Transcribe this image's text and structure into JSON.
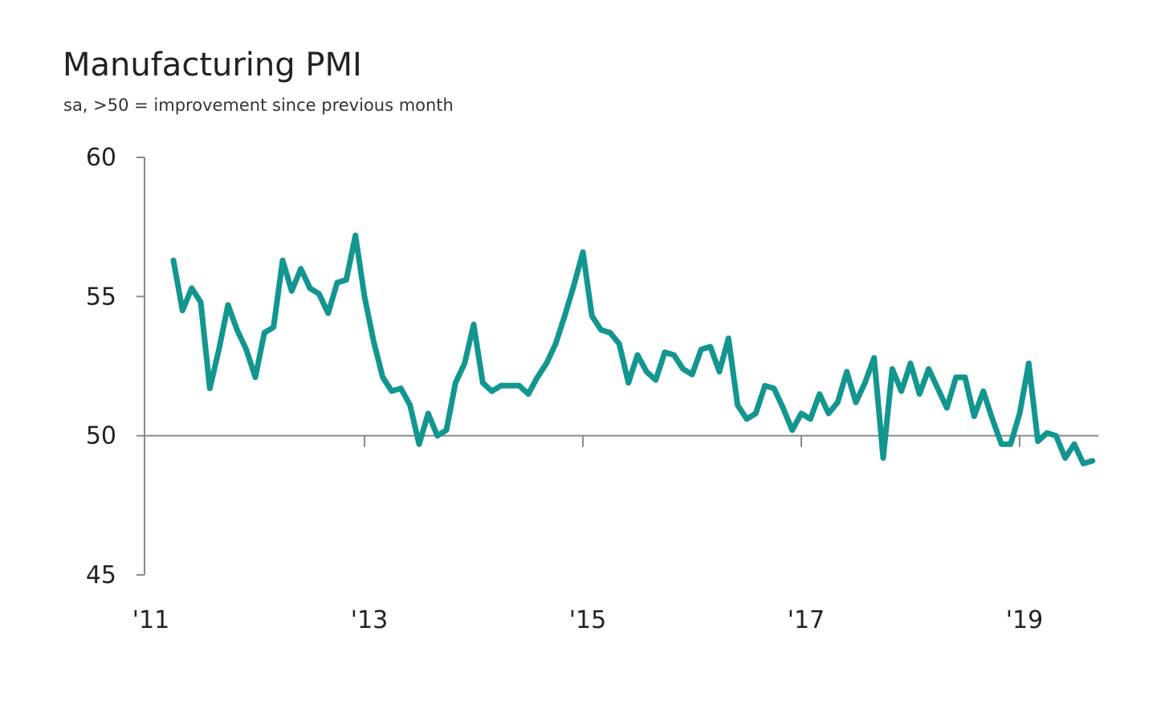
{
  "chart_data": {
    "type": "line",
    "title": "Manufacturing PMI",
    "subtitle": "sa, >50 = improvement since previous month",
    "xlabel": "",
    "ylabel": "",
    "ylim": [
      45,
      60
    ],
    "yticks": [
      60,
      55,
      50,
      45
    ],
    "xticks": [
      {
        "year": 2011,
        "label": "'11"
      },
      {
        "year": 2013,
        "label": "'13"
      },
      {
        "year": 2015,
        "label": "'15"
      },
      {
        "year": 2017,
        "label": "'17"
      },
      {
        "year": 2019,
        "label": "'19"
      }
    ],
    "reference_line": 50,
    "grid": false,
    "legend": "none",
    "line_color": "#12968f",
    "axis_color": "#8a8a8a",
    "series": [
      {
        "name": "",
        "x": [
          "2011-04",
          "2011-05",
          "2011-06",
          "2011-07",
          "2011-08",
          "2011-09",
          "2011-10",
          "2011-11",
          "2011-12",
          "2012-01",
          "2012-02",
          "2012-03",
          "2012-04",
          "2012-05",
          "2012-06",
          "2012-07",
          "2012-08",
          "2012-09",
          "2012-10",
          "2012-11",
          "2012-12",
          "2013-01",
          "2013-02",
          "2013-03",
          "2013-04",
          "2013-05",
          "2013-06",
          "2013-07",
          "2013-08",
          "2013-09",
          "2013-10",
          "2013-11",
          "2013-12",
          "2014-01",
          "2014-02",
          "2014-03",
          "2014-04",
          "2014-05",
          "2014-06",
          "2014-07",
          "2014-08",
          "2014-09",
          "2014-10",
          "2014-11",
          "2014-12",
          "2015-01",
          "2015-02",
          "2015-03",
          "2015-04",
          "2015-05",
          "2015-06",
          "2015-07",
          "2015-08",
          "2015-09",
          "2015-10",
          "2015-11",
          "2015-12",
          "2016-01",
          "2016-02",
          "2016-03",
          "2016-04",
          "2016-05",
          "2016-06",
          "2016-07",
          "2016-08",
          "2016-09",
          "2016-10",
          "2016-11",
          "2016-12",
          "2017-01",
          "2017-02",
          "2017-03",
          "2017-04",
          "2017-05",
          "2017-06",
          "2017-07",
          "2017-08",
          "2017-09",
          "2017-10",
          "2017-11",
          "2017-12",
          "2018-01",
          "2018-02",
          "2018-03",
          "2018-04",
          "2018-05",
          "2018-06",
          "2018-07",
          "2018-08",
          "2018-09",
          "2018-10",
          "2018-11",
          "2018-12",
          "2019-01",
          "2019-02",
          "2019-03",
          "2019-04",
          "2019-05",
          "2019-06",
          "2019-07",
          "2019-08",
          "2019-09"
        ],
        "values": [
          56.3,
          54.5,
          55.3,
          54.8,
          51.7,
          53.1,
          54.7,
          53.8,
          53.1,
          52.1,
          53.7,
          53.9,
          56.3,
          55.2,
          56.0,
          55.3,
          55.1,
          54.4,
          55.5,
          55.6,
          57.2,
          55.0,
          53.4,
          52.1,
          51.6,
          51.7,
          51.1,
          49.7,
          50.8,
          50.0,
          50.2,
          51.9,
          52.6,
          54.0,
          51.9,
          51.6,
          51.8,
          51.8,
          51.8,
          51.5,
          52.1,
          52.6,
          53.3,
          54.3,
          55.4,
          56.6,
          54.3,
          53.8,
          53.7,
          53.3,
          51.9,
          52.9,
          52.3,
          52.0,
          53.0,
          52.9,
          52.4,
          52.2,
          53.1,
          53.2,
          52.3,
          53.5,
          51.1,
          50.6,
          50.8,
          51.8,
          51.7,
          51.0,
          50.2,
          50.8,
          50.6,
          51.5,
          50.8,
          51.2,
          52.3,
          51.2,
          51.9,
          52.8,
          49.2,
          52.4,
          51.6,
          52.6,
          51.5,
          52.4,
          51.7,
          51.0,
          52.1,
          52.1,
          50.7,
          51.6,
          50.6,
          49.7,
          49.7,
          50.8,
          52.6,
          49.8,
          50.1,
          50.0,
          49.2,
          49.7,
          49.0,
          49.1
        ]
      }
    ]
  }
}
